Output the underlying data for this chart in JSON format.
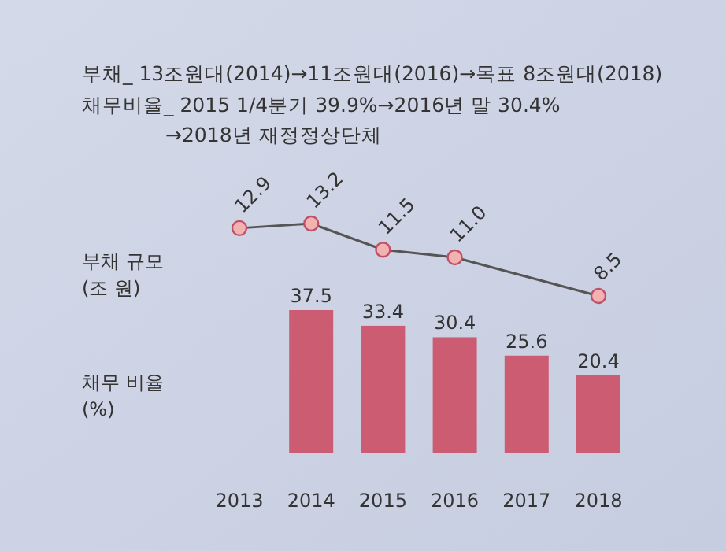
{
  "chart_data": [
    {
      "type": "line",
      "title": "부채_ 13조원대(2014)→11조원대(2016)→목표 8조원대(2018)",
      "subtitle": "채무비율_ 2015 1/4분기 39.9%→2016년 말 30.4%\n→2018년 재정정상단체",
      "categories": [
        null,
        null,
        null,
        null,
        null,
        null
      ],
      "series": [
        {
          "name": "부채 규모 (조 원)",
          "color": "#555555",
          "values": [
            12.9,
            13.2,
            11.5,
            11.0,
            null,
            8.5
          ],
          "value_labels": [
            "12.9",
            "13.2",
            "11.5",
            "11.0",
            null,
            "8.5"
          ]
        }
      ],
      "legend": false,
      "grid": false,
      "marker": "circle",
      "line_style": "solid"
    },
    {
      "type": "bar",
      "categories": [
        "2013",
        "2014",
        "2015",
        "2016",
        "2017",
        "2018"
      ],
      "series": [
        {
          "name": "채무 비율 (%)",
          "color": "#cc5c72",
          "values": [
            null,
            37.5,
            33.4,
            30.4,
            25.6,
            20.4
          ]
        }
      ],
      "data_labels": true,
      "legend": false,
      "grid": false
    }
  ]
}
